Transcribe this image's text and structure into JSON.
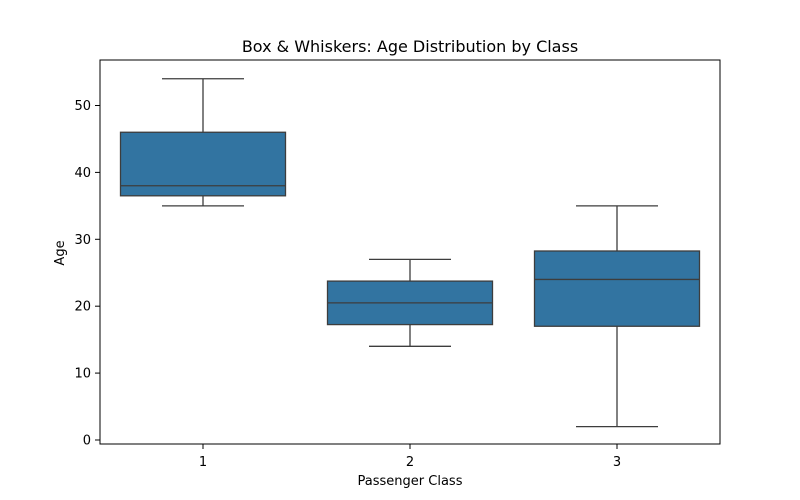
{
  "chart_data": {
    "type": "box",
    "title": "Box & Whiskers: Age Distribution by Class",
    "xlabel": "Passenger Class",
    "ylabel": "Age",
    "categories": [
      "1",
      "2",
      "3"
    ],
    "ylim": [
      -0.6,
      56.8
    ],
    "yticks": [
      0,
      10,
      20,
      30,
      40,
      50
    ],
    "grid": false,
    "box_color": "#3274a1",
    "line_color": "#3d3d3d",
    "boxes": [
      {
        "category": "1",
        "whisker_low": 35,
        "q1": 36.5,
        "median": 38,
        "q3": 46,
        "whisker_high": 54
      },
      {
        "category": "2",
        "whisker_low": 14,
        "q1": 17.25,
        "median": 20.5,
        "q3": 23.75,
        "whisker_high": 27
      },
      {
        "category": "3",
        "whisker_low": 2,
        "q1": 17,
        "median": 24,
        "q3": 28.25,
        "whisker_high": 35
      }
    ]
  }
}
